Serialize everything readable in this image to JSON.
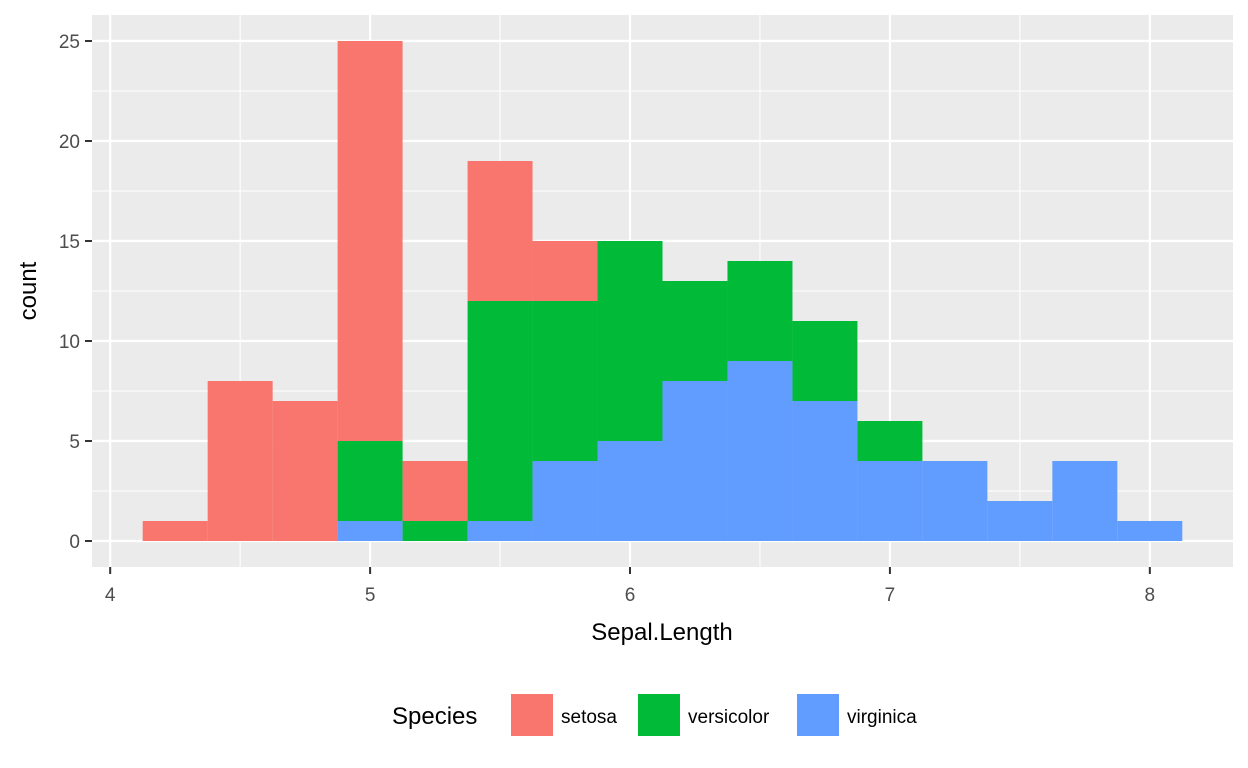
{
  "chart_data": {
    "type": "bar",
    "subtype": "stacked-histogram",
    "xlabel": "Sepal.Length",
    "ylabel": "count",
    "x_ticks": [
      "4",
      "5",
      "6",
      "7",
      "8"
    ],
    "y_ticks": [
      "0",
      "5",
      "10",
      "15",
      "20",
      "25"
    ],
    "xlim": [
      3.93,
      8.32
    ],
    "ylim": [
      -1.3,
      26.3
    ],
    "grid": true,
    "legend_position": "bottom",
    "legend_title": "Species",
    "bin_width": 0.25,
    "bin_centers": [
      4.25,
      4.5,
      4.75,
      5.0,
      5.25,
      5.5,
      5.75,
      6.0,
      6.25,
      6.5,
      6.75,
      7.0,
      7.25,
      7.5,
      7.75,
      8.0
    ],
    "series": [
      {
        "name": "setosa",
        "color": "#F8766D",
        "values": [
          1,
          8,
          7,
          20,
          3,
          7,
          3,
          0,
          0,
          0,
          0,
          0,
          0,
          0,
          0,
          0
        ]
      },
      {
        "name": "versicolor",
        "color": "#00BA38",
        "values": [
          0,
          0,
          0,
          4,
          1,
          11,
          8,
          10,
          5,
          5,
          4,
          2,
          0,
          0,
          0,
          0
        ]
      },
      {
        "name": "virginica",
        "color": "#619CFF",
        "values": [
          0,
          0,
          0,
          1,
          0,
          1,
          4,
          5,
          8,
          9,
          7,
          4,
          4,
          2,
          4,
          1
        ]
      }
    ],
    "stack_order_bottom_to_top": [
      "virginica",
      "versicolor",
      "setosa"
    ]
  }
}
